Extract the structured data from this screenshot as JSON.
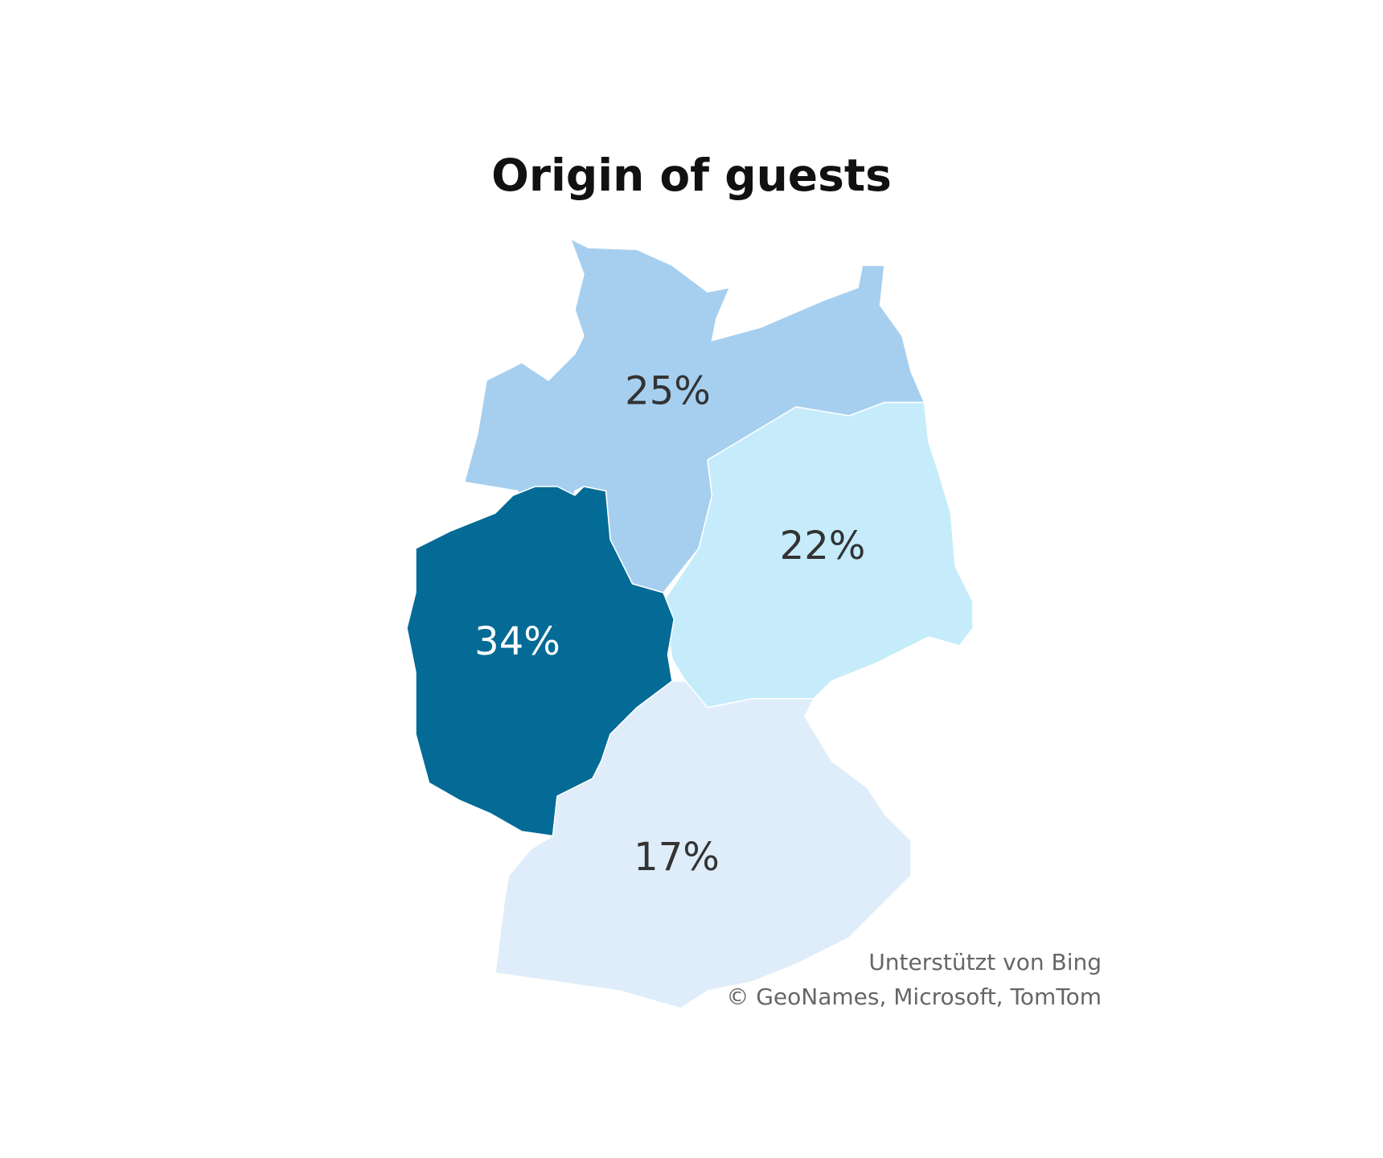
{
  "chart_data": {
    "type": "choropleth",
    "title": "Origin of guests",
    "values": [
      25,
      22,
      34,
      17
    ],
    "value_labels": [
      "25%",
      "22%",
      "34%",
      "17%"
    ],
    "colors": [
      "#a6cfef",
      "#c6ecfb",
      "#046b96",
      "#deedf9"
    ],
    "label_colors": [
      "#333333",
      "#333333",
      "#ffffff",
      "#333333"
    ],
    "attribution": [
      "Unterstützt von Bing",
      "© GeoNames, Microsoft, TomTom"
    ]
  }
}
